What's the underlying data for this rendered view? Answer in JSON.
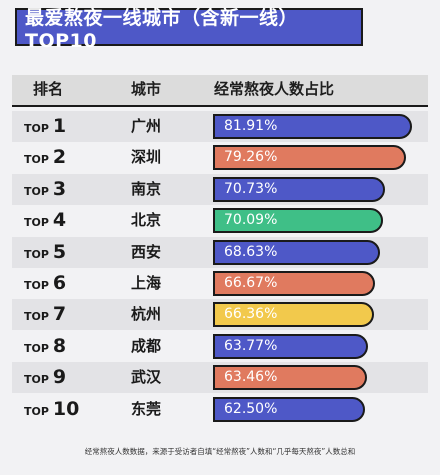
{
  "title": "最爱熬夜一线城市（含新一线）TOP10",
  "headers": {
    "rank": "排名",
    "city": "城市",
    "metric": "经常熬夜人数占比"
  },
  "rank_prefix": "TOP",
  "footnote": "经常熬夜人数数据，来源于受访者自填“经常熬夜”人数和“几乎每天熬夜”人数总和",
  "chart_data": {
    "type": "bar",
    "orientation": "horizontal",
    "title": "最爱熬夜一线城市（含新一线）TOP10",
    "xlabel": "经常熬夜人数占比",
    "ylabel": "城市",
    "categories": [
      "广州",
      "深圳",
      "南京",
      "北京",
      "西安",
      "上海",
      "杭州",
      "成都",
      "武汉",
      "东莞"
    ],
    "ranks": [
      "1",
      "2",
      "3",
      "4",
      "5",
      "6",
      "7",
      "8",
      "9",
      "10"
    ],
    "values": [
      81.91,
      79.26,
      70.73,
      70.09,
      68.63,
      66.67,
      66.36,
      63.77,
      63.46,
      62.5
    ],
    "value_labels": [
      "81.91%",
      "79.26%",
      "70.73%",
      "70.09%",
      "68.63%",
      "66.67%",
      "66.36%",
      "63.77%",
      "63.46%",
      "62.50%"
    ],
    "bar_colors": [
      "#4e58c7",
      "#e07a5f",
      "#4e58c7",
      "#3fbf87",
      "#4e58c7",
      "#e07a5f",
      "#f2c94c",
      "#4e58c7",
      "#e07a5f",
      "#4e58c7"
    ]
  }
}
